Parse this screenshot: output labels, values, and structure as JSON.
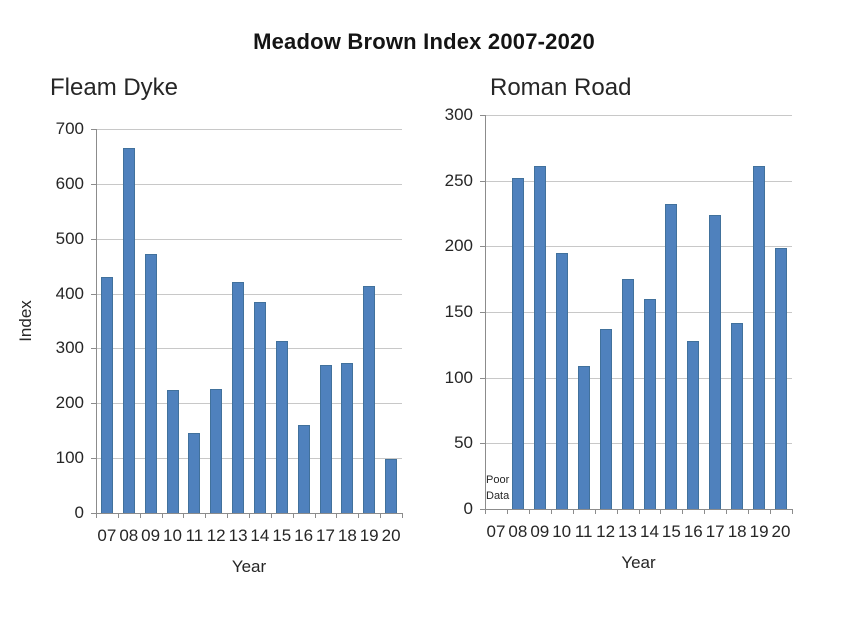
{
  "title": "Meadow Brown Index 2007-2020",
  "colors": {
    "bar_fill": "#4F81BD",
    "bar_border": "#41719C",
    "gridline": "#C8C8C8",
    "axis": "#8C8C8C",
    "text": "#262626"
  },
  "chart_data": [
    {
      "type": "bar",
      "title": "Fleam Dyke",
      "xlabel": "Year",
      "ylabel": "Index",
      "categories": [
        "07",
        "08",
        "09",
        "10",
        "11",
        "12",
        "13",
        "14",
        "15",
        "16",
        "17",
        "18",
        "19",
        "20"
      ],
      "values": [
        430,
        665,
        473,
        225,
        146,
        227,
        421,
        385,
        314,
        161,
        269,
        274,
        413,
        99
      ],
      "ylim": [
        0,
        700
      ],
      "yticks": [
        0,
        100,
        200,
        300,
        400,
        500,
        600,
        700
      ],
      "grid": true,
      "legend": "none"
    },
    {
      "type": "bar",
      "title": "Roman Road",
      "xlabel": "Year",
      "ylabel": "",
      "categories": [
        "07",
        "08",
        "09",
        "10",
        "11",
        "12",
        "13",
        "14",
        "15",
        "16",
        "17",
        "18",
        "19",
        "20"
      ],
      "values": [
        null,
        252,
        261,
        195,
        109,
        137,
        175,
        160,
        232,
        128,
        224,
        142,
        261,
        199
      ],
      "ylim": [
        0,
        300
      ],
      "yticks": [
        0,
        50,
        100,
        150,
        200,
        250,
        300
      ],
      "grid": true,
      "legend": "none",
      "annotation": {
        "text": "Poor Data",
        "lines": [
          "Poor",
          "Data"
        ],
        "x_category": "07"
      }
    }
  ]
}
